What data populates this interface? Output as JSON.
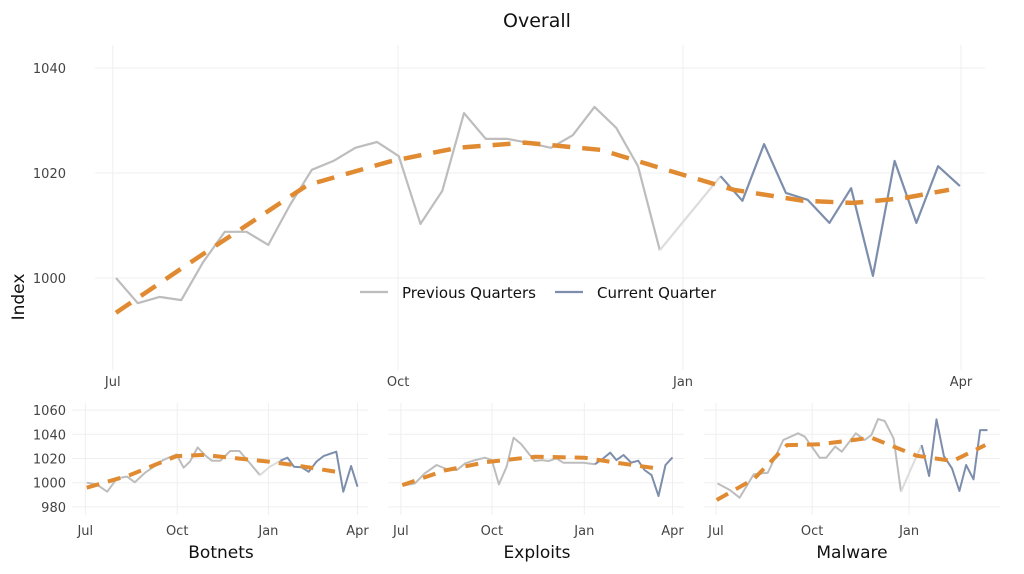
{
  "colors": {
    "previous": "#bdbdbd",
    "bridge": "#dcdcdc",
    "current": "#7d8eac",
    "trend": "#e08a32",
    "grid": "#efefef"
  },
  "legend": {
    "previous_label": "Previous Quarters",
    "current_label": "Current Quarter",
    "position": "center"
  },
  "chart_data": [
    {
      "type": "line",
      "title": "Overall",
      "xlabel": "",
      "ylabel": "Index",
      "x_unit": "weeks since start",
      "xticks": [
        {
          "label": "Jul",
          "x": -0.15
        },
        {
          "label": "Oct",
          "x": 12.97
        },
        {
          "label": "Jan",
          "x": 26.07
        },
        {
          "label": "Apr",
          "x": 38.85
        }
      ],
      "yticks": [
        1000,
        1020,
        1040
      ],
      "ylim": [
        984,
        1048
      ],
      "xlim": [
        -1,
        40.5
      ],
      "previous": [
        [
          0,
          1000
        ],
        [
          1,
          995.2
        ],
        [
          2,
          996.4
        ],
        [
          3,
          995.8
        ],
        [
          4,
          1003
        ],
        [
          5,
          1008.8
        ],
        [
          6,
          1008.8
        ],
        [
          7,
          1006.3
        ],
        [
          8,
          1013.9
        ],
        [
          9,
          1020.6
        ],
        [
          10,
          1022.3
        ],
        [
          11,
          1024.8
        ],
        [
          12,
          1025.9
        ],
        [
          13,
          1023.2
        ],
        [
          14,
          1010.3
        ],
        [
          15,
          1016.6
        ],
        [
          16,
          1031.4
        ],
        [
          17,
          1026.5
        ],
        [
          18,
          1026.5
        ],
        [
          19,
          1025.7
        ],
        [
          20,
          1024.8
        ],
        [
          21,
          1027.2
        ],
        [
          22,
          1032.6
        ],
        [
          23,
          1028.6
        ],
        [
          24,
          1021.3
        ],
        [
          25,
          1005.3
        ]
      ],
      "current": [
        [
          27.8,
          1019.4
        ],
        [
          28.8,
          1014.7
        ],
        [
          29.8,
          1025.5
        ],
        [
          30.8,
          1016.2
        ],
        [
          31.8,
          1014.9
        ],
        [
          32.8,
          1010.5
        ],
        [
          33.8,
          1017.1
        ],
        [
          34.8,
          1000.4
        ],
        [
          35.8,
          1022.3
        ],
        [
          36.8,
          1010.5
        ],
        [
          37.8,
          1021.3
        ],
        [
          38.8,
          1017.5
        ]
      ],
      "trend": [
        [
          0,
          993.4
        ],
        [
          3.4,
          1002.9
        ],
        [
          5.7,
          1009.2
        ],
        [
          8.8,
          1017.7
        ],
        [
          12.6,
          1022.2
        ],
        [
          15.7,
          1024.8
        ],
        [
          18.8,
          1025.8
        ],
        [
          22.3,
          1024.4
        ],
        [
          25.3,
          1020.6
        ],
        [
          28.4,
          1016.8
        ],
        [
          31.6,
          1014.7
        ],
        [
          33.9,
          1014.3
        ],
        [
          36.2,
          1015.2
        ],
        [
          38.3,
          1016.8
        ]
      ]
    },
    {
      "type": "line",
      "title": "Botnets",
      "xlabel": "Botnets",
      "ylabel": "",
      "xticks": [
        {
          "label": "Jul",
          "x": -0.2
        },
        {
          "label": "Oct",
          "x": 12.8
        },
        {
          "label": "Jan",
          "x": 25.7
        },
        {
          "label": "Apr",
          "x": 38.3
        }
      ],
      "yticks": [
        980,
        1000,
        1020,
        1040,
        1060
      ],
      "ylim": [
        975,
        1062
      ],
      "xlim": [
        -1.5,
        39.5
      ],
      "previous": [
        [
          0,
          1000
        ],
        [
          1.4,
          998.6
        ],
        [
          2.9,
          992.6
        ],
        [
          4.3,
          1003.6
        ],
        [
          5.7,
          1005
        ],
        [
          6.8,
          1000.3
        ],
        [
          8.3,
          1008.5
        ],
        [
          9.5,
          1013.2
        ],
        [
          10.8,
          1018.7
        ],
        [
          12.7,
          1023.4
        ],
        [
          13.7,
          1012.4
        ],
        [
          14.6,
          1017.4
        ],
        [
          15.7,
          1029.2
        ],
        [
          16.7,
          1022.9
        ],
        [
          17.7,
          1018.2
        ],
        [
          18.9,
          1018.2
        ],
        [
          20.3,
          1026.2
        ],
        [
          21.6,
          1026.2
        ],
        [
          23.1,
          1016
        ],
        [
          24.5,
          1006.3
        ]
      ],
      "bridge": [
        [
          24.5,
          1006.3
        ],
        [
          25.9,
          1013.2
        ],
        [
          27.4,
          1018.2
        ]
      ],
      "current": [
        [
          27.4,
          1018.2
        ],
        [
          28.4,
          1020.7
        ],
        [
          29.3,
          1013.2
        ],
        [
          30.4,
          1012.7
        ],
        [
          31.4,
          1009
        ],
        [
          32.5,
          1017.4
        ],
        [
          33.5,
          1022
        ],
        [
          35.3,
          1025.6
        ],
        [
          36.3,
          992.6
        ],
        [
          37.4,
          1013.8
        ],
        [
          38.3,
          996.7
        ]
      ],
      "trend": [
        [
          0,
          995.9
        ],
        [
          6,
          1006
        ],
        [
          12.7,
          1022
        ],
        [
          16.5,
          1023
        ],
        [
          25.7,
          1017.4
        ],
        [
          30,
          1014
        ],
        [
          35.8,
          1008.5
        ]
      ]
    },
    {
      "type": "line",
      "title": "Exploits",
      "xlabel": "Exploits",
      "ylabel": "",
      "xticks": [
        {
          "label": "Jul",
          "x": -0.2
        },
        {
          "label": "Oct",
          "x": 12.8
        },
        {
          "label": "Jan",
          "x": 26
        },
        {
          "label": "Apr",
          "x": 38.6
        }
      ],
      "yticks": [
        980,
        1000,
        1020,
        1040,
        1060
      ],
      "ylim": [
        975,
        1062
      ],
      "xlim": [
        -1.5,
        39.5
      ],
      "previous": [
        [
          0.1,
          997.5
        ],
        [
          1.8,
          999.4
        ],
        [
          3.2,
          1007.7
        ],
        [
          4.9,
          1014.6
        ],
        [
          6.3,
          1011.3
        ],
        [
          7.8,
          1010.5
        ],
        [
          9,
          1016
        ],
        [
          10.4,
          1018.7
        ],
        [
          11.8,
          1020.7
        ],
        [
          12.8,
          1018.7
        ],
        [
          13.8,
          998.6
        ],
        [
          14.9,
          1013.2
        ],
        [
          15.9,
          1037.2
        ],
        [
          17,
          1031.7
        ],
        [
          18.9,
          1017.9
        ],
        [
          19.9,
          1018.7
        ],
        [
          20.9,
          1017.9
        ],
        [
          22,
          1020.1
        ],
        [
          23,
          1016.5
        ],
        [
          24.2,
          1016.5
        ],
        [
          25.9,
          1016.5
        ],
        [
          27.5,
          1015.2
        ]
      ],
      "current": [
        [
          27.5,
          1015.2
        ],
        [
          28.7,
          1020.1
        ],
        [
          29.7,
          1024.8
        ],
        [
          30.6,
          1018.7
        ],
        [
          31.6,
          1022.9
        ],
        [
          32.7,
          1016.5
        ],
        [
          33.7,
          1018.2
        ],
        [
          34.6,
          1010.5
        ],
        [
          35.6,
          1006.3
        ],
        [
          36.6,
          989
        ],
        [
          37.6,
          1014.6
        ],
        [
          38.6,
          1020.9
        ]
      ],
      "trend": [
        [
          0,
          998
        ],
        [
          6,
          1010
        ],
        [
          12,
          1017
        ],
        [
          19,
          1021.5
        ],
        [
          26,
          1020.7
        ],
        [
          30,
          1017
        ],
        [
          36.3,
          1011.8
        ]
      ]
    },
    {
      "type": "line",
      "title": "Malware",
      "xlabel": "Malware",
      "ylabel": "",
      "xticks": [
        {
          "label": "Jul",
          "x": -0.1
        },
        {
          "label": "Oct",
          "x": 12.9
        },
        {
          "label": "Jan",
          "x": 26
        }
      ],
      "yticks": [
        980,
        1000,
        1020,
        1040,
        1060
      ],
      "ylim": [
        975,
        1062
      ],
      "xlim": [
        -1.5,
        39.5
      ],
      "previous": [
        [
          0.1,
          999.4
        ],
        [
          1.8,
          993.9
        ],
        [
          3.1,
          987.6
        ],
        [
          5,
          1006.9
        ],
        [
          6.9,
          1008.3
        ],
        [
          9,
          1035.3
        ],
        [
          11,
          1040.8
        ],
        [
          11.9,
          1038
        ],
        [
          13.9,
          1020.7
        ],
        [
          14.8,
          1020.7
        ],
        [
          16,
          1029.8
        ],
        [
          16.9,
          1025.6
        ],
        [
          18.8,
          1040.8
        ],
        [
          20,
          1035.3
        ],
        [
          20.9,
          1039.4
        ],
        [
          21.8,
          1052.6
        ],
        [
          22.7,
          1051
        ],
        [
          23.9,
          1036.6
        ],
        [
          24.9,
          992.6
        ]
      ],
      "bridge": [
        [
          24.9,
          992.6
        ],
        [
          26.9,
          1020.5
        ],
        [
          27.7,
          1031.1
        ]
      ],
      "current": [
        [
          27.7,
          1031.1
        ],
        [
          28.7,
          1005.5
        ],
        [
          29.7,
          1052.3
        ],
        [
          30.7,
          1022
        ],
        [
          31.8,
          1011.8
        ],
        [
          32.8,
          993.1
        ],
        [
          33.7,
          1014.6
        ],
        [
          34.7,
          1002.8
        ],
        [
          35.6,
          1043.5
        ],
        [
          36.6,
          1043.5
        ]
      ],
      "trend": [
        [
          0,
          985.7
        ],
        [
          5,
          1003
        ],
        [
          9.5,
          1031.1
        ],
        [
          13.9,
          1031.7
        ],
        [
          20.9,
          1037.2
        ],
        [
          27,
          1022.3
        ],
        [
          31.9,
          1017.9
        ],
        [
          36.3,
          1031.1
        ]
      ]
    }
  ]
}
